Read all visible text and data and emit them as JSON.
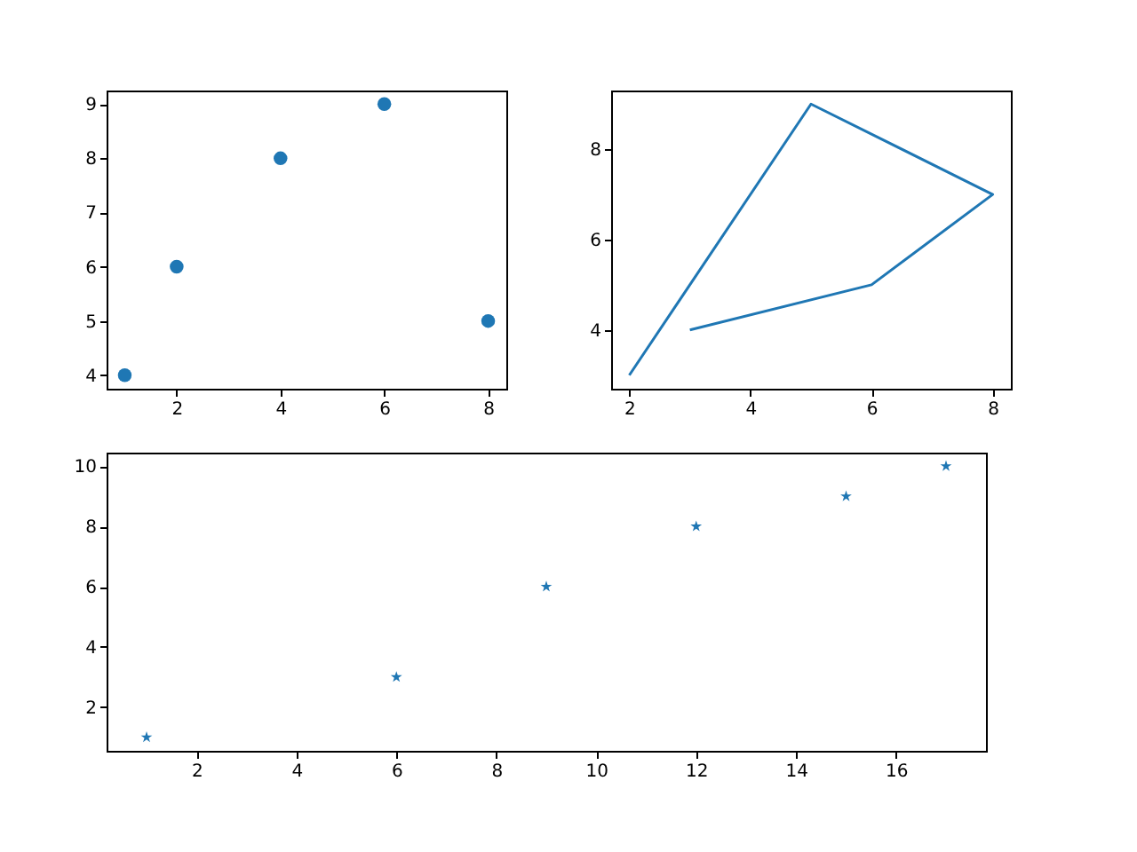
{
  "chart_data": [
    {
      "type": "scatter",
      "marker": "circle",
      "x": [
        1,
        2,
        4,
        6,
        8
      ],
      "values": [
        4,
        6,
        8,
        9,
        5
      ],
      "color": "#1f77b4",
      "xlim": [
        0.65,
        8.35
      ],
      "ylim": [
        3.75,
        9.25
      ],
      "xticks": [
        2,
        4,
        6,
        8
      ],
      "yticks": [
        4,
        5,
        6,
        7,
        8,
        9
      ]
    },
    {
      "type": "line",
      "line_style": "solid",
      "x": [
        2,
        5,
        8,
        6,
        3
      ],
      "values": [
        3,
        9,
        7,
        5,
        4
      ],
      "color": "#1f77b4",
      "xlim": [
        1.7,
        8.3
      ],
      "ylim": [
        2.7,
        9.3
      ],
      "xticks": [
        2,
        4,
        6,
        8
      ],
      "yticks": [
        4,
        6,
        8
      ]
    },
    {
      "type": "scatter",
      "marker": "star",
      "x": [
        1,
        6,
        9,
        12,
        15,
        17
      ],
      "values": [
        1,
        3,
        6,
        8,
        9,
        10
      ],
      "color": "#1f77b4",
      "xlim": [
        0.2,
        17.8
      ],
      "ylim": [
        0.55,
        10.45
      ],
      "xticks": [
        2,
        4,
        6,
        8,
        10,
        12,
        14,
        16
      ],
      "yticks": [
        2,
        4,
        6,
        8,
        10
      ]
    }
  ]
}
